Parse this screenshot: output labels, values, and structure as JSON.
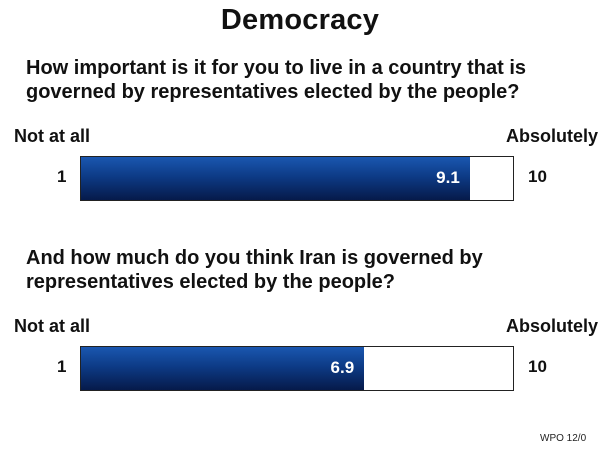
{
  "chart_data": {
    "type": "bar",
    "title": "Democracy",
    "scale": {
      "min": 1,
      "max": 10,
      "min_label": "1",
      "max_label": "10",
      "low_text": "Not at all",
      "high_text": "Absolutely"
    },
    "items": [
      {
        "question": "How important is it for you to live in a country that is governed by representatives elected by the people?",
        "value": 9.1
      },
      {
        "question": "And how much do you think Iran is governed by representatives elected by the people?",
        "value": 6.9
      }
    ],
    "bar_color": "#0d3b86",
    "source": "WPO 12/0"
  }
}
